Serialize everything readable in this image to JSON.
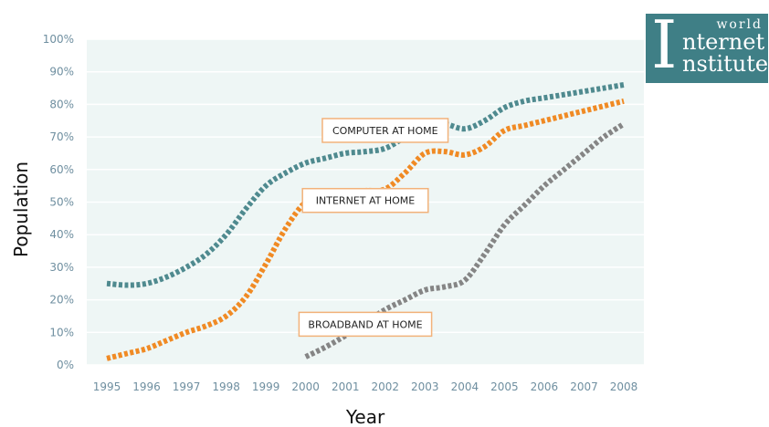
{
  "chart_data": {
    "type": "line",
    "title": "",
    "xlabel": "Year",
    "ylabel": "Population",
    "x": [
      1995,
      1996,
      1997,
      1998,
      1999,
      2000,
      2001,
      2002,
      2003,
      2004,
      2005,
      2006,
      2007,
      2008
    ],
    "x_tick_labels": [
      "1995",
      "1996",
      "1997",
      "1998",
      "1999",
      "2000",
      "2001",
      "2002",
      "2003",
      "2004",
      "2005",
      "2006",
      "2007",
      "2008"
    ],
    "y_tick_labels": [
      "0%",
      "10%",
      "20%",
      "30%",
      "40%",
      "50%",
      "60%",
      "70%",
      "80%",
      "90%",
      "100%"
    ],
    "ylim": [
      0,
      100
    ],
    "xlim": [
      1995,
      2008
    ],
    "grid": true,
    "series": [
      {
        "name": "COMPUTER AT HOME",
        "color": "#4f8a8f",
        "x": [
          1995,
          1995.5,
          1996,
          1996.5,
          1997,
          1997.5,
          1998,
          1998.5,
          1999,
          1999.5,
          2000,
          2000.5,
          2001,
          2001.5,
          2002,
          2002.5,
          2003,
          2003.5,
          2004,
          2004.5,
          2005,
          2005.5,
          2006,
          2006.5,
          2007,
          2007.5,
          2008
        ],
        "values": [
          25,
          24.5,
          25,
          27,
          30,
          34,
          40,
          48,
          55,
          59,
          62,
          63.5,
          65,
          65.5,
          66.5,
          70,
          74,
          74,
          72.5,
          75,
          79,
          81,
          82,
          83,
          84,
          85,
          86
        ]
      },
      {
        "name": "INTERNET AT HOME",
        "color": "#f08a24",
        "x": [
          1995,
          1995.5,
          1996,
          1996.5,
          1997,
          1997.5,
          1998,
          1998.5,
          1999,
          1999.5,
          2000,
          2000.5,
          2001,
          2001.5,
          2002,
          2002.5,
          2003,
          2003.5,
          2004,
          2004.5,
          2005,
          2005.5,
          2006,
          2006.5,
          2007,
          2007.5,
          2008
        ],
        "values": [
          2,
          3.5,
          5,
          7.5,
          10,
          12,
          15,
          21,
          31,
          42,
          50,
          52,
          53,
          53.5,
          54,
          59,
          65,
          65.5,
          64.5,
          67,
          72,
          73.5,
          75,
          76.5,
          78,
          79.5,
          81
        ]
      },
      {
        "name": "BROADBAND AT HOME",
        "color": "#858585",
        "x": [
          2000,
          2000.5,
          2001,
          2001.5,
          2002,
          2002.5,
          2003,
          2003.5,
          2004,
          2004.5,
          2005,
          2005.5,
          2006,
          2006.5,
          2007,
          2007.5,
          2008
        ],
        "values": [
          2.5,
          5.5,
          9,
          13,
          17,
          20,
          23,
          24,
          26,
          34,
          43,
          49,
          55,
          60,
          65,
          70,
          74
        ]
      }
    ],
    "labels": [
      {
        "series": 0,
        "text": "COMPUTER AT HOME",
        "at_x": 2002,
        "at_y": 72
      },
      {
        "series": 1,
        "text": "INTERNET AT HOME",
        "at_x": 2001.5,
        "at_y": 50.5
      },
      {
        "series": 2,
        "text": "BROADBAND AT HOME",
        "at_x": 2001.5,
        "at_y": 12.5
      }
    ]
  },
  "logo": {
    "big_letter": "I",
    "line1": "world",
    "line2": "nternet",
    "line3": "nstitute",
    "background": "#3f7f86"
  }
}
